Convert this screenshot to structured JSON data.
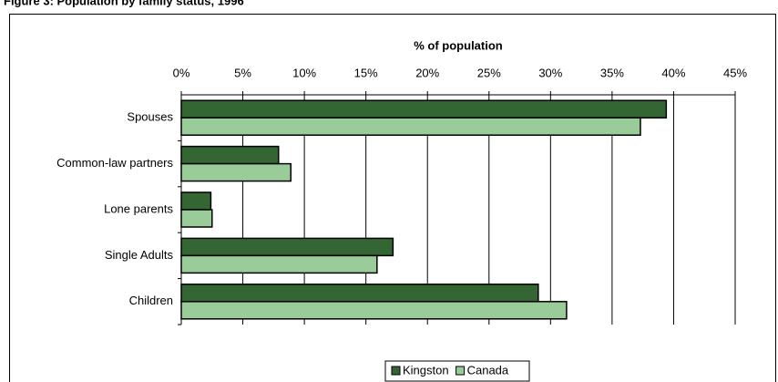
{
  "chart_data": {
    "type": "hbar",
    "title": "Figure 3: Population by family status, 1996",
    "x_label": "% of population",
    "categories": [
      "Spouses",
      "Common-law partners",
      "Lone parents",
      "Single Adults",
      "Children"
    ],
    "series": [
      {
        "name": "Kingston",
        "color": "#336633",
        "values": [
          39.4,
          7.9,
          2.4,
          17.2,
          29.0
        ]
      },
      {
        "name": "Canada",
        "color": "#99cc99",
        "values": [
          37.3,
          8.9,
          2.5,
          15.9,
          31.3
        ]
      }
    ],
    "xlim": [
      0,
      45
    ],
    "xticks": [
      {
        "value": 0,
        "label": "0%"
      },
      {
        "value": 5,
        "label": "5%"
      },
      {
        "value": 10,
        "label": "10%"
      },
      {
        "value": 15,
        "label": "15%"
      },
      {
        "value": 20,
        "label": "20%"
      },
      {
        "value": 25,
        "label": "25%"
      },
      {
        "value": 30,
        "label": "30%"
      },
      {
        "value": 35,
        "label": "35%"
      },
      {
        "value": 40,
        "label": "40%"
      },
      {
        "value": 45,
        "label": "45%"
      }
    ],
    "grid": true,
    "legend": "bottom"
  }
}
